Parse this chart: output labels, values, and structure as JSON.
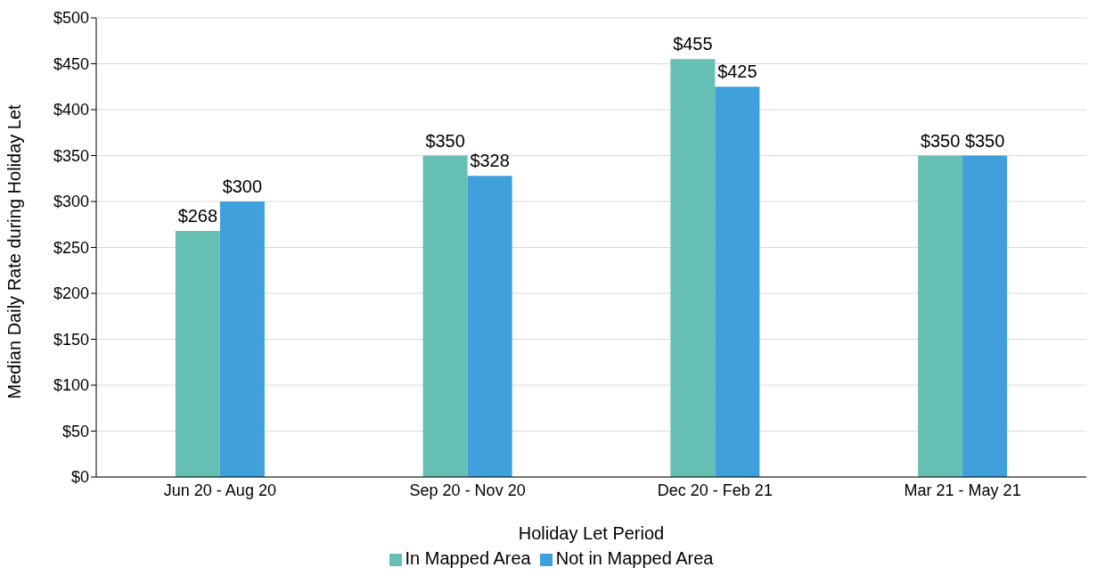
{
  "chart_data": {
    "type": "bar",
    "xlabel": "Holiday Let Period",
    "ylabel": "Median Daily Rate during Holiday Let",
    "categories": [
      "Jun 20 - Aug 20",
      "Sep 20 - Nov 20",
      "Dec 20 - Feb 21",
      "Mar 21 - May 21"
    ],
    "series": [
      {
        "name": "In Mapped Area",
        "color": "#66bfb3",
        "values": [
          268,
          350,
          455,
          350
        ],
        "value_labels": [
          "$268",
          "$350",
          "$455",
          "$350"
        ]
      },
      {
        "name": "Not in Mapped Area",
        "color": "#3fa0dc",
        "values": [
          300,
          328,
          425,
          350
        ],
        "value_labels": [
          "$300",
          "$328",
          "$425",
          "$350"
        ]
      }
    ],
    "ylim": [
      0,
      500
    ],
    "yticks": [
      {
        "value": 0,
        "label": "$0"
      },
      {
        "value": 50,
        "label": "$50"
      },
      {
        "value": 100,
        "label": "$100"
      },
      {
        "value": 150,
        "label": "$150"
      },
      {
        "value": 200,
        "label": "$200"
      },
      {
        "value": 250,
        "label": "$250"
      },
      {
        "value": 300,
        "label": "$300"
      },
      {
        "value": 350,
        "label": "$350"
      },
      {
        "value": 400,
        "label": "$400"
      },
      {
        "value": 450,
        "label": "$450"
      },
      {
        "value": 500,
        "label": "$500"
      }
    ],
    "grid": "y",
    "legend": "bottom"
  }
}
